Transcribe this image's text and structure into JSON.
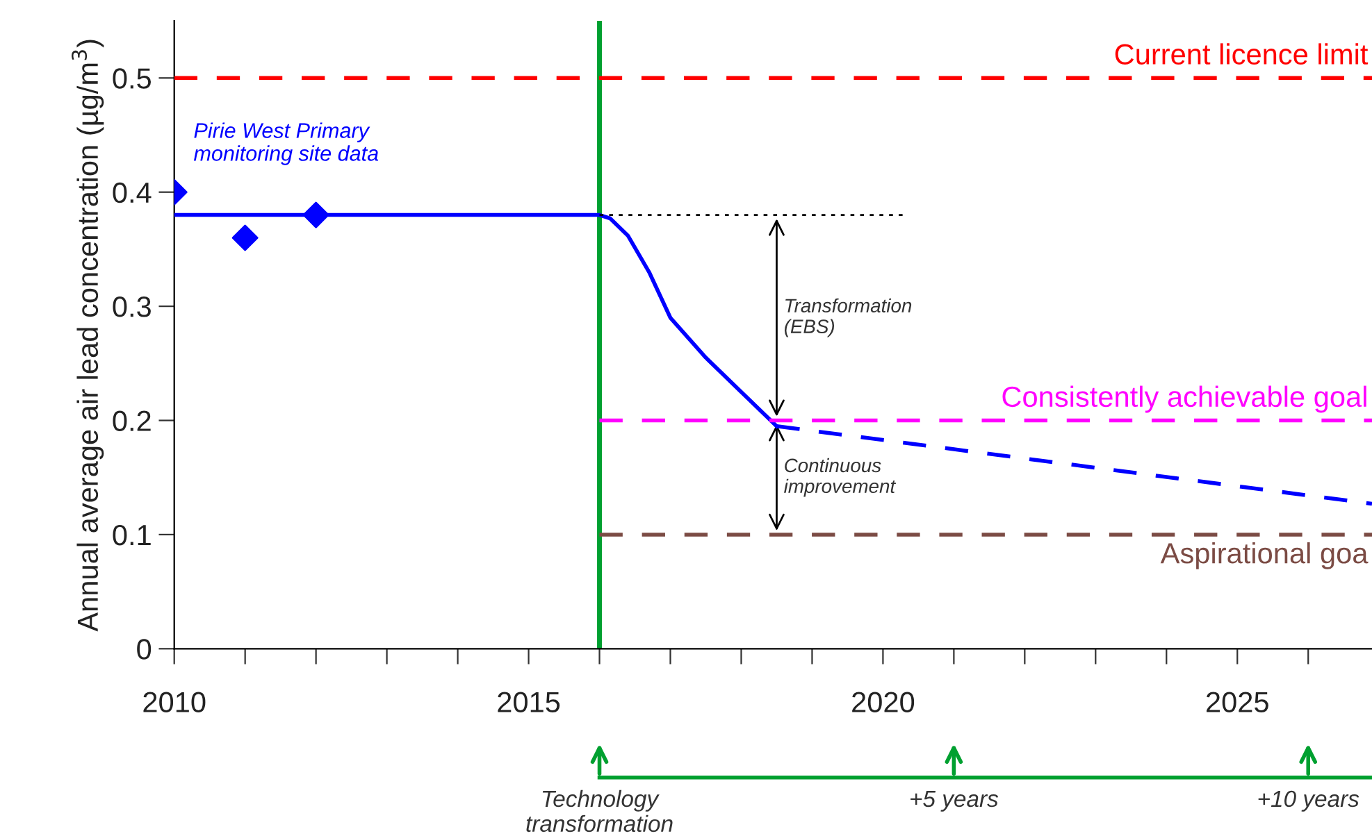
{
  "chart_data": {
    "type": "line",
    "ylabel": "Annual average air lead concentration (µg/m$^{3}$)",
    "xlim": [
      2010,
      2026.9
    ],
    "ylim": [
      0,
      0.55
    ],
    "xticks": [
      2010,
      {
        "value": 2011,
        "label": null
      },
      {
        "value": 2012,
        "label": null
      },
      {
        "value": 2013,
        "label": null
      },
      {
        "value": 2014,
        "label": null
      },
      2015,
      {
        "value": 2016,
        "label": null
      },
      {
        "value": 2017,
        "label": null
      },
      {
        "value": 2018,
        "label": null
      },
      {
        "value": 2019,
        "label": null
      },
      2020,
      {
        "value": 2021,
        "label": null
      },
      {
        "value": 2022,
        "label": null
      },
      {
        "value": 2023,
        "label": null
      },
      {
        "value": 2024,
        "label": null
      },
      2025,
      {
        "value": 2026,
        "label": null
      }
    ],
    "yticks": [
      0,
      0.1,
      0.2,
      0.3,
      0.4,
      0.5
    ],
    "grid": false,
    "legend": false,
    "series": [
      {
        "type": "scatter",
        "name": "Pirie West Primary\nmonitoring site data",
        "color": "#0000ff",
        "marker": "diamond",
        "x": [
          2010,
          2011,
          2012
        ],
        "values": [
          0.4,
          0.36,
          0.38
        ]
      },
      {
        "type": "line",
        "color": "#0000ff",
        "line_style": "solid",
        "x": [
          2010,
          2016,
          2016.15,
          2016.4,
          2016.7,
          2017,
          2017.5,
          2018,
          2018.5
        ],
        "values": [
          0.38,
          0.38,
          0.377,
          0.362,
          0.33,
          0.29,
          0.255,
          0.225,
          0.195
        ]
      },
      {
        "type": "line",
        "color": "#0000ff",
        "line_style": "dashed",
        "x": [
          2018.5,
          2026.9
        ],
        "values": [
          0.195,
          0.127
        ]
      },
      {
        "type": "line",
        "color": "#000000",
        "line_style": "dotted",
        "x": [
          2016,
          2020.3
        ],
        "values": [
          0.38,
          0.38
        ]
      },
      {
        "type": "line",
        "name": "Current licence limit",
        "color": "#ff0000",
        "line_style": "dashed",
        "x": [
          2010,
          2026.9
        ],
        "values": [
          0.5,
          0.5
        ]
      },
      {
        "type": "line",
        "name": "Consistently achievable goal",
        "color": "#ff00ff",
        "line_style": "dashed",
        "x": [
          2016,
          2026.9
        ],
        "values": [
          0.2,
          0.2
        ]
      },
      {
        "type": "line",
        "name": "Aspirational goa",
        "color": "#7b4b44",
        "line_style": "dashed",
        "x": [
          2016,
          2026.9
        ],
        "values": [
          0.1,
          0.1
        ]
      }
    ],
    "ref_lines": [
      {
        "axis": "x",
        "value": 2016,
        "color": "#00a030",
        "line_style": "solid"
      }
    ],
    "annotations": [
      "Transformation\n(EBS)",
      "Continuous\nimprovement",
      "Technology\ntransformation",
      "+5 years",
      "+10 years"
    ]
  }
}
